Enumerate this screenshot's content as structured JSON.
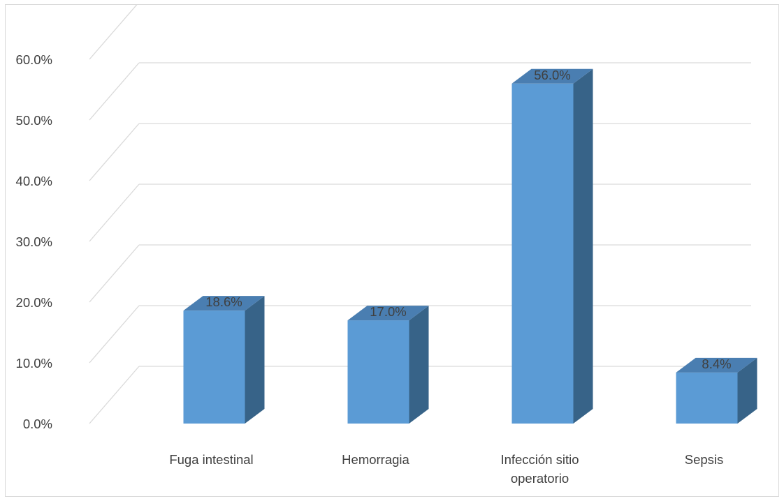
{
  "chart_data": {
    "type": "bar",
    "style": "3d-column",
    "categories": [
      [
        "Fuga intestinal"
      ],
      [
        "Hemorragia"
      ],
      [
        "Infección sitio",
        "operatorio"
      ],
      [
        "Sepsis"
      ]
    ],
    "values": [
      18.6,
      17.0,
      56.0,
      8.4
    ],
    "data_labels": [
      "18.6%",
      "17.0%",
      "56.0%",
      "8.4%"
    ],
    "y_ticks": [
      "0.0%",
      "10.0%",
      "20.0%",
      "30.0%",
      "40.0%",
      "50.0%",
      "60.0%"
    ],
    "ylim": [
      0,
      60
    ],
    "title": "",
    "xlabel": "",
    "ylabel": "",
    "grid": true,
    "legend": "none",
    "colors": {
      "bar_front": "#5b9bd5",
      "bar_side": "#376388",
      "bar_top": "#4a7eb1",
      "grid": "#d9d9d9",
      "text": "#404040"
    }
  }
}
